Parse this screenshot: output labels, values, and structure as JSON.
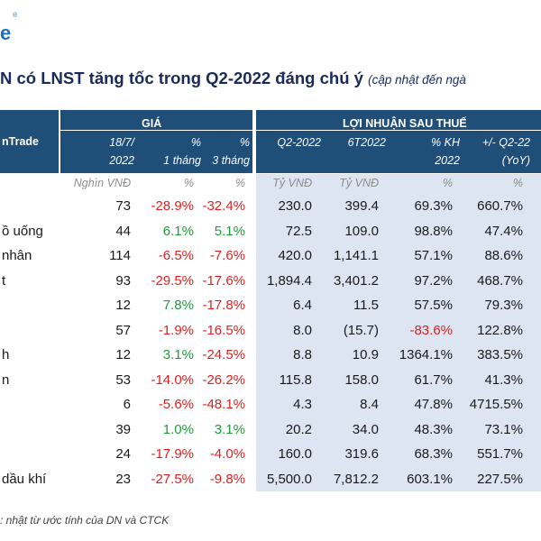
{
  "logo": {
    "text": "e",
    "mark": "®"
  },
  "title": {
    "main": "N có LNST tăng tốc trong Q2-2022 đáng chú ý",
    "sub": "(cập nhật đến ngà"
  },
  "header": {
    "left_label": "nTrade",
    "gia_group": "GIÁ",
    "lnst_group": "LỢI NHUẬN SAU THUẾ",
    "cols": [
      [
        "18/7/",
        "2022"
      ],
      [
        "%",
        "1 tháng"
      ],
      [
        "%",
        "3 tháng"
      ],
      [
        "Q2-2022"
      ],
      [
        "6T2022"
      ],
      [
        "% KH",
        "2022"
      ],
      [
        "+/- Q2-22",
        "(YoY)"
      ]
    ]
  },
  "units": [
    "Nghìn VNĐ",
    "%",
    "%",
    "Tỷ VNĐ",
    "Tỷ VNĐ",
    "%",
    "%"
  ],
  "rows": [
    {
      "name": "",
      "price": "73",
      "m1": "-28.9%",
      "m3": "-32.4%",
      "q2": "230.0",
      "h1": "399.4",
      "kh": "69.3%",
      "yoy": "660.7%"
    },
    {
      "name": "ồ uống",
      "price": "44",
      "m1": "6.1%",
      "m3": "5.1%",
      "q2": "72.5",
      "h1": "109.0",
      "kh": "98.8%",
      "yoy": "47.4%"
    },
    {
      "name": "nhân",
      "price": "114",
      "m1": "-6.5%",
      "m3": "-7.6%",
      "q2": "420.0",
      "h1": "1,141.1",
      "kh": "57.1%",
      "yoy": "88.6%"
    },
    {
      "name": "t",
      "price": "93",
      "m1": "-29.5%",
      "m3": "-17.6%",
      "q2": "1,894.4",
      "h1": "3,401.2",
      "kh": "97.2%",
      "yoy": "468.7%"
    },
    {
      "name": "",
      "price": "12",
      "m1": "7.8%",
      "m3": "-17.8%",
      "q2": "6.4",
      "h1": "11.5",
      "kh": "57.5%",
      "yoy": "79.3%"
    },
    {
      "name": "",
      "price": "57",
      "m1": "-1.9%",
      "m3": "-16.5%",
      "q2": "8.0",
      "h1": "(15.7)",
      "kh": "-83.6%",
      "yoy": "122.8%"
    },
    {
      "name": "h",
      "price": "12",
      "m1": "3.1%",
      "m3": "-24.5%",
      "q2": "8.8",
      "h1": "10.9",
      "kh": "1364.1%",
      "yoy": "383.5%"
    },
    {
      "name": "n",
      "price": "53",
      "m1": "-14.0%",
      "m3": "-26.2%",
      "q2": "115.8",
      "h1": "158.0",
      "kh": "61.7%",
      "yoy": "41.3%"
    },
    {
      "name": "",
      "price": "6",
      "m1": "-5.6%",
      "m3": "-48.1%",
      "q2": "4.3",
      "h1": "8.4",
      "kh": "47.8%",
      "yoy": "4715.5%"
    },
    {
      "name": "",
      "price": "39",
      "m1": "1.0%",
      "m3": "3.1%",
      "q2": "20.2",
      "h1": "34.0",
      "kh": "48.3%",
      "yoy": "73.1%"
    },
    {
      "name": "",
      "price": "24",
      "m1": "-17.9%",
      "m3": "-4.0%",
      "q2": "160.0",
      "h1": "319.6",
      "kh": "68.3%",
      "yoy": "551.7%"
    },
    {
      "name": "dầu khí",
      "price": "23",
      "m1": "-27.5%",
      "m3": "-9.8%",
      "q2": "5,500.0",
      "h1": "7,812.2",
      "kh": "603.1%",
      "yoy": "227.5%"
    }
  ],
  "footnote": ": nhật từ ước tính của DN và CTCK",
  "colors": {
    "header_bg": "#1f4e79",
    "band_bg": "#dde4f2",
    "positive": "#1e9c3b",
    "negative": "#e02020",
    "title": "#1a2b5a"
  }
}
